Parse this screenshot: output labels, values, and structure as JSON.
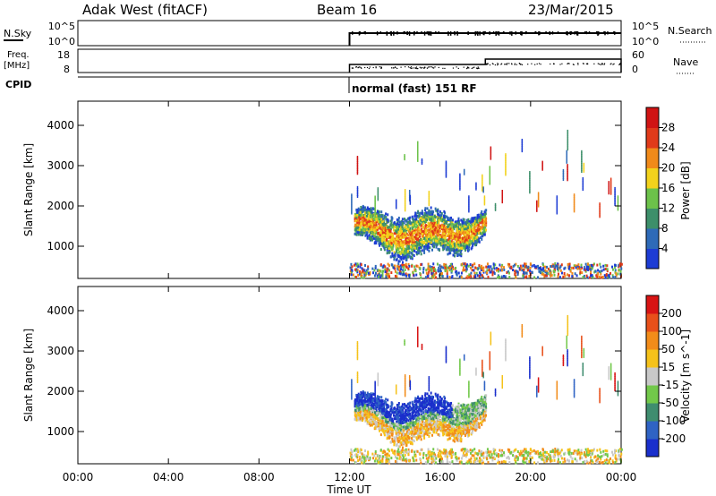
{
  "header": {
    "station": "Adak West (fitACF)",
    "beam": "Beam 16",
    "date": "23/Mar/2015"
  },
  "top_panels": {
    "nsky_label": "N.Sky",
    "nsky_ticks": [
      "10^5",
      "10^0"
    ],
    "nsearch_label": "N.Search",
    "nsearch_ticks": [
      "10^5",
      "10^0"
    ],
    "freq_label": "Freq.",
    "freq_unit": "[MHz]",
    "freq_ticks": [
      "18",
      "8"
    ],
    "nave_label": "Nave",
    "nave_ticks": [
      "60",
      "0"
    ],
    "cpid_label": "CPID",
    "cpid_text": "normal (fast) 151 RF"
  },
  "x_axis": {
    "label": "Time UT",
    "ticks": [
      "00:00",
      "04:00",
      "08:00",
      "12:00",
      "16:00",
      "20:00",
      "00:00"
    ],
    "hours": [
      0,
      4,
      8,
      12,
      16,
      20,
      24
    ]
  },
  "chart_data": [
    {
      "type": "heatmap",
      "name": "power",
      "ylabel": "Slant Range [km]",
      "yticks": [
        1000,
        2000,
        3000,
        4000
      ],
      "ylim": [
        200,
        4600
      ],
      "xlim": [
        0,
        24
      ],
      "colorbar_label": "Power [dB]",
      "colorbar_ticks": [
        "4",
        "8",
        "12",
        "16",
        "20",
        "24",
        "28"
      ],
      "colorbar_colors": [
        "#1d3cd4",
        "#2e6ab8",
        "#3d8f6a",
        "#6cc24a",
        "#f2d21c",
        "#f08a1a",
        "#e03a1a",
        "#d01414"
      ],
      "data_start_hour": 12
    },
    {
      "type": "heatmap",
      "name": "velocity",
      "ylabel": "Slant Range [km]",
      "yticks": [
        1000,
        2000,
        3000,
        4000
      ],
      "ylim": [
        200,
        4600
      ],
      "xlim": [
        0,
        24
      ],
      "colorbar_label": "Velocity [m s^-1]",
      "colorbar_ticks": [
        "200",
        "100",
        "50",
        "15",
        "-15",
        "-50",
        "-100",
        "-200"
      ],
      "colorbar_colors": [
        "#1a2fcc",
        "#2f63c4",
        "#3f8d6f",
        "#72c84a",
        "#c8c8c8",
        "#f5c21a",
        "#f28c1a",
        "#e8501a",
        "#d81414"
      ],
      "data_start_hour": 12
    }
  ]
}
